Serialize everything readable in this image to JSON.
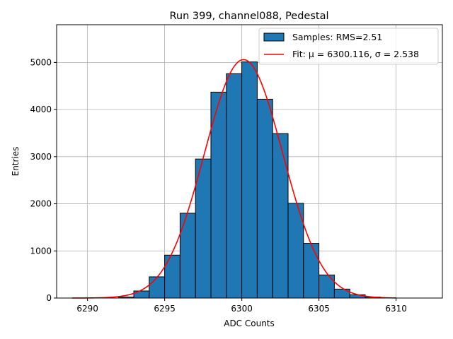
{
  "chart_data": {
    "type": "bar",
    "title": "Run 399, channel088, Pedestal",
    "xlabel": "ADC Counts",
    "ylabel": "Entries",
    "xlim": [
      6288,
      6313
    ],
    "ylim": [
      0,
      5800
    ],
    "xticks": [
      6290,
      6295,
      6300,
      6305,
      6310
    ],
    "yticks": [
      0,
      1000,
      2000,
      3000,
      4000,
      5000
    ],
    "grid": true,
    "legend_position": "top-right",
    "bin_width": 1,
    "bins": [
      {
        "left": 6292,
        "count": 20
      },
      {
        "left": 6293,
        "count": 150
      },
      {
        "left": 6294,
        "count": 450
      },
      {
        "left": 6295,
        "count": 910
      },
      {
        "left": 6296,
        "count": 1800
      },
      {
        "left": 6297,
        "count": 2950
      },
      {
        "left": 6298,
        "count": 4370
      },
      {
        "left": 6299,
        "count": 4760
      },
      {
        "left": 6300,
        "count": 5010
      },
      {
        "left": 6301,
        "count": 4220
      },
      {
        "left": 6302,
        "count": 3490
      },
      {
        "left": 6303,
        "count": 2010
      },
      {
        "left": 6304,
        "count": 1160
      },
      {
        "left": 6305,
        "count": 490
      },
      {
        "left": 6306,
        "count": 190
      },
      {
        "left": 6307,
        "count": 70
      },
      {
        "left": 6308,
        "count": 20
      }
    ],
    "series": [
      {
        "name": "Samples: RMS=2.51",
        "kind": "histogram",
        "color": "#1f77b4",
        "edge_color": "#000000"
      },
      {
        "name": "Fit: μ = 6300.116, σ = 2.538",
        "kind": "gaussian-fit",
        "color": "#ff0000",
        "mu": 6300.116,
        "sigma": 2.538,
        "amplitude": 5060,
        "x_range": [
          6289,
          6310
        ]
      }
    ]
  }
}
